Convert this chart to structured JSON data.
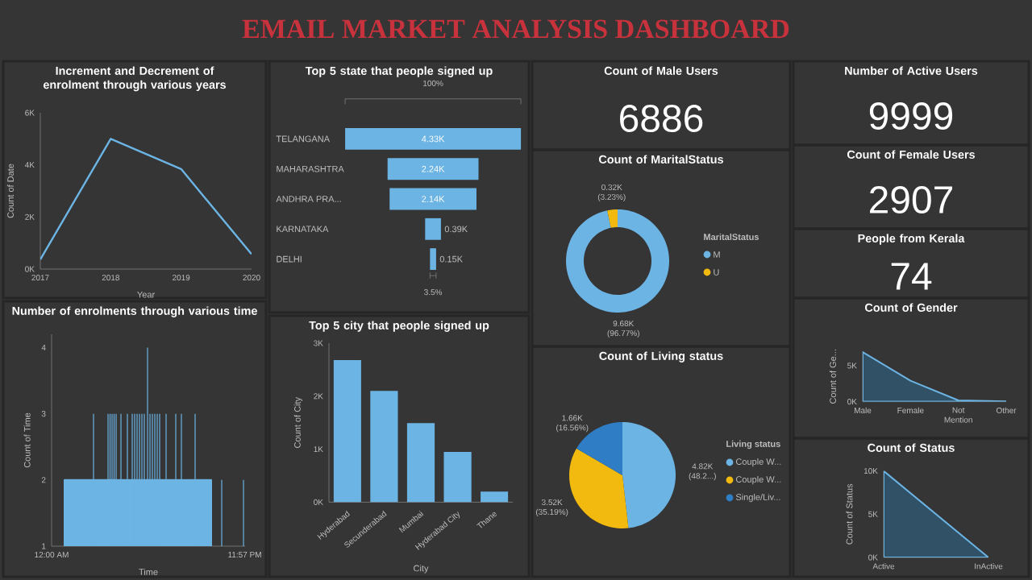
{
  "chart_data": [
    {
      "type": "other",
      "title": "EMAIL MARKET ANALYSIS DASHBOARD"
    },
    {
      "type": "line",
      "title": "Increment and Decrement of enrolment through various years",
      "categories": [
        "2017",
        "2018",
        "2019",
        "2020"
      ],
      "values": [
        370,
        5000,
        3840,
        570
      ],
      "color": "#6cb4e4",
      "xlabel": "Year",
      "ylabel": "Count of Date",
      "ylim": [
        0,
        6000
      ],
      "yticks": [
        {
          "value": 0,
          "label": "0K"
        },
        {
          "value": 2000,
          "label": "2K"
        },
        {
          "value": 4000,
          "label": "4K"
        },
        {
          "value": 6000,
          "label": "6K"
        }
      ]
    },
    {
      "type": "other",
      "title": "Top 5 state that people signed up",
      "categories": [
        "TELANGANA",
        "MAHARASHTRA",
        "ANDHRA PRA...",
        "KARNATAKA",
        "DELHI"
      ],
      "values": [
        4330,
        2240,
        2140,
        390,
        150
      ],
      "value_labels": [
        "4.33K",
        "2.24K",
        "2.14K",
        "0.39K",
        "0.15K"
      ],
      "color": "#6cb4e4",
      "annotations": [
        "100%",
        "3.5%"
      ]
    },
    {
      "type": "other",
      "title": "Count of Male Users",
      "annotations": [
        "6886"
      ]
    },
    {
      "type": "other",
      "title": "Number of Active Users",
      "annotations": [
        "9999"
      ]
    },
    {
      "type": "other",
      "title": "Count of Female Users",
      "annotations": [
        "2907"
      ]
    },
    {
      "type": "donut",
      "title": "Count of MaritalStatus",
      "legend_title": "MaritalStatus",
      "categories": [
        "M",
        "U"
      ],
      "values": [
        9680,
        320
      ],
      "value_labels": [
        "9.68K (96.77%)",
        "0.32K (3.23%)"
      ],
      "colors": [
        "#6cb4e4",
        "#f2b90f"
      ],
      "legend": "right"
    },
    {
      "type": "other",
      "title": "People from Kerala",
      "annotations": [
        "74"
      ]
    },
    {
      "type": "bar",
      "title": "Number of enrolments through various time",
      "xlabel": "Time",
      "ylabel": "Count of Time",
      "xlim": [
        0,
        24
      ],
      "xticks": [
        {
          "value": 0,
          "label": "12:00 AM"
        },
        {
          "value": 23.95,
          "label": "11:57 PM"
        }
      ],
      "ylim": [
        1,
        4.2
      ],
      "yticks": [
        1,
        2,
        3,
        4
      ],
      "series": [
        {
          "type": "area",
          "color": "#6cb4e4",
          "x": [
            1.6,
            19.8
          ],
          "values": [
            2,
            2
          ]
        },
        {
          "type": "bar",
          "color": "#6cb4e4",
          "x": [
            5.2,
            7.0,
            7.25,
            7.5,
            7.75,
            8.0,
            8.6,
            9.4,
            10.0,
            10.3,
            10.6,
            10.9,
            11.2,
            11.5,
            11.9,
            12.2,
            12.5,
            12.8,
            13.1,
            13.4,
            14.2,
            15.4,
            16.1,
            17.8,
            21.1,
            23.8
          ],
          "values": [
            3,
            3,
            3,
            3,
            3,
            3,
            3,
            3,
            3,
            3,
            3,
            3,
            3,
            3,
            4,
            3,
            3,
            3,
            3,
            3,
            3,
            3,
            3,
            3,
            2,
            2
          ]
        }
      ]
    },
    {
      "type": "bar",
      "title": "Top 5 city that people signed up",
      "categories": [
        "Hyderabad",
        "Secunderabad",
        "Mumbai",
        "Hyderabad City",
        "Thane"
      ],
      "values": [
        2680,
        2100,
        1490,
        950,
        200
      ],
      "color": "#6cb4e4",
      "xlabel": "City",
      "ylabel": "Count of City",
      "ylim": [
        0,
        3000
      ],
      "yticks": [
        {
          "value": 0,
          "label": "0K"
        },
        {
          "value": 1000,
          "label": "1K"
        },
        {
          "value": 2000,
          "label": "2K"
        },
        {
          "value": 3000,
          "label": "3K"
        }
      ]
    },
    {
      "type": "pie",
      "title": "Count of Living status",
      "legend_title": "Living status",
      "categories": [
        "Couple W...",
        "Couple W...",
        "Single/Liv..."
      ],
      "values": [
        4820,
        3520,
        1660
      ],
      "value_labels": [
        "4.82K (48.2...)",
        "3.52K (35.19%)",
        "1.66K (16.56%)"
      ],
      "colors": [
        "#6cb4e4",
        "#f2b90f",
        "#2f7dc4"
      ],
      "legend": "right"
    },
    {
      "type": "area",
      "title": "Count of Gender",
      "categories": [
        "Male",
        "Female",
        "Not Mention",
        "Other"
      ],
      "values": [
        6886,
        2907,
        180,
        30
      ],
      "color": "#6cb4e4",
      "ylabel": "Count of Ge...",
      "ylim": [
        0,
        7000
      ],
      "yticks": [
        {
          "value": 0,
          "label": "0K"
        },
        {
          "value": 5000,
          "label": "5K"
        }
      ]
    },
    {
      "type": "area",
      "title": "Count of Status",
      "categories": [
        "Active",
        "InActive"
      ],
      "values": [
        9999,
        0
      ],
      "color": "#6cb4e4",
      "ylabel": "Count of Status",
      "ylim": [
        0,
        10000
      ],
      "yticks": [
        {
          "value": 0,
          "label": "0K"
        },
        {
          "value": 5000,
          "label": "5K"
        },
        {
          "value": 10000,
          "label": "10K"
        }
      ]
    }
  ]
}
